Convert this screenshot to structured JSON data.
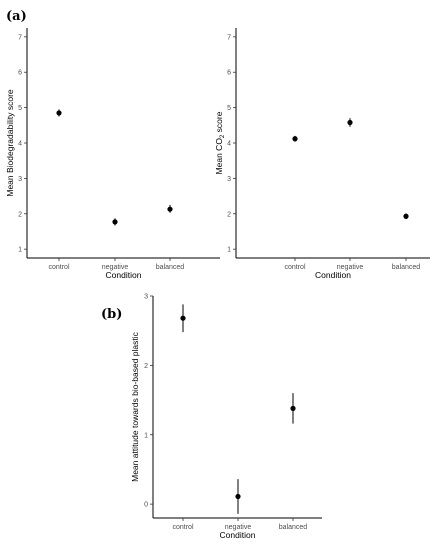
{
  "panel_labels": [
    "(a)",
    "(b)"
  ],
  "chart_data": [
    {
      "type": "scatter",
      "panel": "(a)",
      "categories": [
        "control",
        "negative",
        "balanced"
      ],
      "values": [
        4.85,
        1.77,
        2.13
      ],
      "error_low": [
        4.75,
        1.67,
        2.03
      ],
      "error_high": [
        4.95,
        1.87,
        2.25
      ],
      "xlabel": "Condition",
      "ylabel": "Mean Biodegradability score",
      "ylim": [
        0.75,
        7.25
      ],
      "yticks": [
        "1",
        "2",
        "3",
        "4",
        "5",
        "6",
        "7"
      ],
      "grid": false
    },
    {
      "type": "scatter",
      "panel": "(a)",
      "categories": [
        "control",
        "negative",
        "balanced"
      ],
      "values": [
        4.12,
        4.58,
        1.93
      ],
      "error_low": [
        4.04,
        4.46,
        1.85
      ],
      "error_high": [
        4.2,
        4.7,
        2.01
      ],
      "xlabel": "Condition",
      "ylabel": "Mean CO₂ score",
      "ylim": [
        0.75,
        7.25
      ],
      "yticks": [
        "1",
        "2",
        "3",
        "4",
        "5",
        "6",
        "7"
      ],
      "grid": false
    },
    {
      "type": "scatter",
      "panel": "(b)",
      "categories": [
        "control",
        "negative",
        "balanced"
      ],
      "values": [
        2.68,
        0.11,
        1.38
      ],
      "error_low": [
        2.48,
        -0.14,
        1.16
      ],
      "error_high": [
        2.88,
        0.36,
        1.6
      ],
      "xlabel": "Condition",
      "ylabel": "Mean attitude towards bio-based plastic",
      "ylim": [
        -0.2,
        3.0
      ],
      "yticks": [
        "0",
        "1",
        "2",
        "3"
      ],
      "grid": false
    }
  ]
}
